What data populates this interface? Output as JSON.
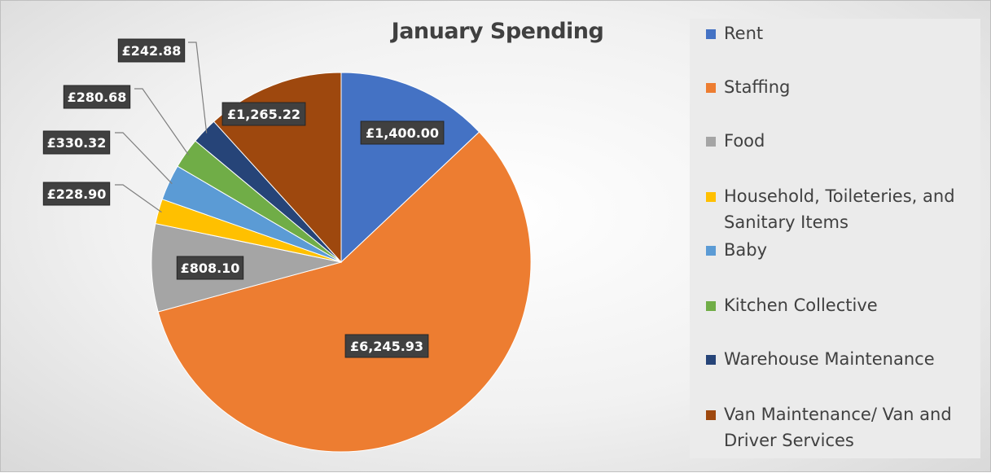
{
  "chart_data": {
    "type": "pie",
    "title": "January Spending",
    "categories": [
      "Rent",
      "Staffing",
      "Food",
      "Household, Toileteries, and Sanitary Items",
      "Baby",
      "Kitchen Collective",
      "Warehouse Maintenance",
      "Van Maintenance/ Van and Driver Services"
    ],
    "values": [
      1400.0,
      6245.93,
      808.1,
      228.9,
      330.32,
      280.68,
      242.88,
      1265.22
    ],
    "data_labels": [
      "£1,400.00",
      "£6,245.93",
      "£808.10",
      "£228.90",
      "£330.32",
      "£280.68",
      "£242.88",
      "£1,265.22"
    ],
    "colors": [
      "#4472c4",
      "#ed7d31",
      "#a5a5a5",
      "#ffc000",
      "#5b9bd5",
      "#70ad47",
      "#264478",
      "#9e480e"
    ],
    "legend_position": "right",
    "label_style": "white text on dark box, leader lines for small slices"
  }
}
